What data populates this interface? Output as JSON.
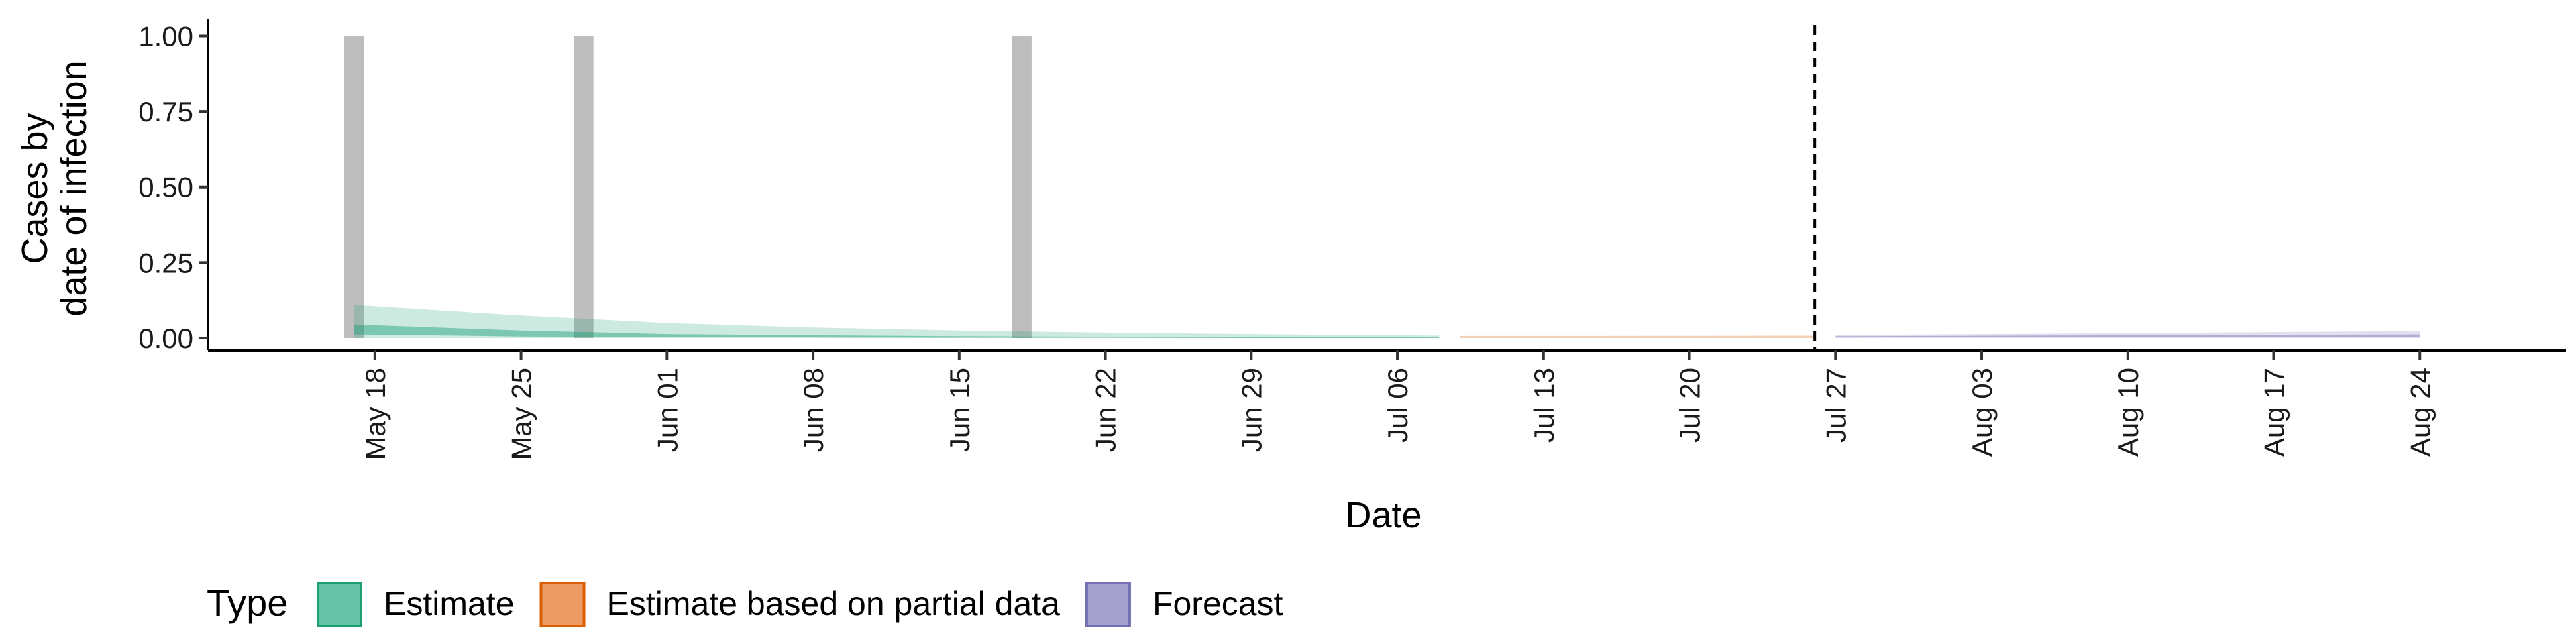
{
  "chart_data": {
    "type": "area",
    "xlabel": "Date",
    "ylabel": [
      "Cases by",
      "date of infection"
    ],
    "x_range": [
      "2020-05-10",
      "2020-08-31"
    ],
    "ylim": [
      -0.04,
      1.03
    ],
    "y_ticks": [
      0.0,
      0.25,
      0.5,
      0.75,
      1.0
    ],
    "y_tick_labels": [
      "0.00",
      "0.25",
      "0.50",
      "0.75",
      "1.00"
    ],
    "x_ticks": [
      {
        "date": "2020-05-18",
        "label": "May 18"
      },
      {
        "date": "2020-05-25",
        "label": "May 25"
      },
      {
        "date": "2020-06-01",
        "label": "Jun 01"
      },
      {
        "date": "2020-06-08",
        "label": "Jun 08"
      },
      {
        "date": "2020-06-15",
        "label": "Jun 15"
      },
      {
        "date": "2020-06-22",
        "label": "Jun 22"
      },
      {
        "date": "2020-06-29",
        "label": "Jun 29"
      },
      {
        "date": "2020-07-06",
        "label": "Jul 06"
      },
      {
        "date": "2020-07-13",
        "label": "Jul 13"
      },
      {
        "date": "2020-07-20",
        "label": "Jul 20"
      },
      {
        "date": "2020-07-27",
        "label": "Jul 27"
      },
      {
        "date": "2020-08-03",
        "label": "Aug 03"
      },
      {
        "date": "2020-08-10",
        "label": "Aug 10"
      },
      {
        "date": "2020-08-17",
        "label": "Aug 17"
      },
      {
        "date": "2020-08-24",
        "label": "Aug 24"
      }
    ],
    "reported_case_bars": [
      {
        "date": "2020-05-17",
        "value": 1.0
      },
      {
        "date": "2020-05-28",
        "value": 1.0
      },
      {
        "date": "2020-06-18",
        "value": 1.0
      }
    ],
    "forecast_date": "2020-07-26",
    "series": [
      {
        "name": "Estimate",
        "color": "#1b9e77",
        "outer": {
          "x": [
            "2020-05-17",
            "2020-05-25",
            "2020-06-01",
            "2020-06-08",
            "2020-06-15",
            "2020-06-22",
            "2020-06-29",
            "2020-07-08"
          ],
          "lower": [
            0.0,
            0.0,
            0.0,
            0.0,
            0.0,
            0.0,
            0.0,
            0.0
          ],
          "upper": [
            0.11,
            0.075,
            0.05,
            0.035,
            0.025,
            0.018,
            0.013,
            0.008
          ]
        },
        "inner": {
          "x": [
            "2020-05-17",
            "2020-05-25",
            "2020-06-01",
            "2020-06-08",
            "2020-06-15",
            "2020-06-22",
            "2020-06-29",
            "2020-07-08"
          ],
          "lower": [
            0.012,
            0.005,
            0.003,
            0.002,
            0.001,
            0.001,
            0.0,
            0.0
          ],
          "upper": [
            0.045,
            0.025,
            0.013,
            0.009,
            0.006,
            0.004,
            0.003,
            0.002
          ]
        }
      },
      {
        "name": "Estimate based on partial data",
        "color": "#d95f02",
        "outer": {
          "x": [
            "2020-07-09",
            "2020-07-16",
            "2020-07-26"
          ],
          "lower": [
            0.0,
            0.0,
            0.0
          ],
          "upper": [
            0.007,
            0.007,
            0.008
          ]
        },
        "inner": {
          "x": [
            "2020-07-09",
            "2020-07-26"
          ],
          "lower": [
            0.002,
            0.002
          ],
          "upper": [
            0.005,
            0.005
          ]
        }
      },
      {
        "name": "Forecast",
        "color": "#7570b3",
        "outer": {
          "x": [
            "2020-07-27",
            "2020-08-03",
            "2020-08-10",
            "2020-08-17",
            "2020-08-24"
          ],
          "lower": [
            0.0,
            0.0,
            0.0,
            0.0,
            0.0
          ],
          "upper": [
            0.01,
            0.013,
            0.016,
            0.02,
            0.023
          ]
        },
        "inner": {
          "x": [
            "2020-07-27",
            "2020-08-24"
          ],
          "lower": [
            0.002,
            0.004
          ],
          "upper": [
            0.006,
            0.012
          ]
        }
      }
    ],
    "legend": {
      "title": "Type",
      "position": "bottom-left",
      "items": [
        {
          "label": "Estimate",
          "fill": "#66c2a5",
          "stroke": "#1b9e77"
        },
        {
          "label": "Estimate based on partial data",
          "fill": "#ec9c62",
          "stroke": "#d95f02"
        },
        {
          "label": "Forecast",
          "fill": "#a6a2d0",
          "stroke": "#7570b3"
        }
      ]
    },
    "grid": false
  }
}
